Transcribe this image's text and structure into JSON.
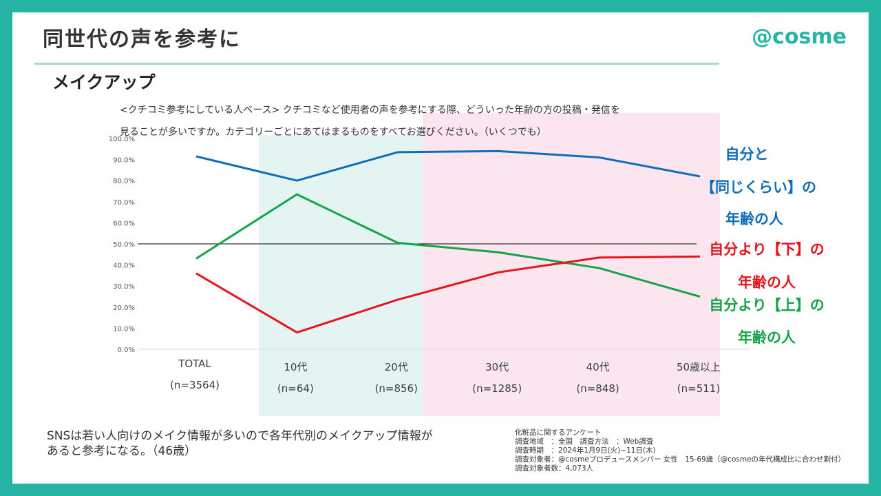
{
  "page": {
    "title": "同世代の声を参考に",
    "logo": "@cosme",
    "section": "メイクアップ",
    "question_line1": "<クチコミ参考にしている人ベース> クチコミなど使用者の声を参考にする際、どういった年齢の方の投稿・発信を",
    "question_line2": "見ることが多いですか。カテゴリーごとにあてはまるものをすべてお選びください。（いくつでも）",
    "comment_line1": "SNSは若い人向けのメイク情報が多いので各年代別のメイクアップ情報が",
    "comment_line2": "あると参考になる。（46歳）",
    "source_lines": [
      "化粧品に関するアンケート",
      "調査地域　：全国　調査方法　：Web調査",
      "調査時期　：2024年1月9日(火)~11日(木)",
      "調査対象者：@cosmeプロデュースメンバー 女性　15-69歳（@cosmeの年代構成比に合わせ割付）",
      "調査対象者数：4,073人"
    ]
  },
  "legend": {
    "same_1": "自分と",
    "same_2": "【同じくらい】の",
    "same_3": "年齢の人",
    "younger_1": "自分より【下】の",
    "younger_2": "年齢の人",
    "older_1": "自分より【上】の",
    "older_2": "年齢の人"
  },
  "colors": {
    "frame": "#26b5a5",
    "same": "#0e6eb8",
    "younger": "#e8141b",
    "older": "#15a34a",
    "teal_band": "#e3f4f2",
    "pink_band": "#fbe6ef"
  },
  "chart_data": {
    "type": "line",
    "categories": [
      "TOTAL",
      "10代",
      "20代",
      "30代",
      "40代",
      "50歳以上"
    ],
    "category_n": [
      "(n=3564)",
      "(n=64)",
      "(n=856)",
      "(n=1285)",
      "(n=848)",
      "(n=511)"
    ],
    "ylim": [
      0,
      100
    ],
    "yticks": [
      "0.0%",
      "10.0%",
      "20.0%",
      "30.0%",
      "40.0%",
      "50.0%",
      "60.0%",
      "70.0%",
      "80.0%",
      "90.0%",
      "100.0%"
    ],
    "reference_line": 50,
    "series": [
      {
        "key": "same",
        "values": [
          91.5,
          80.0,
          93.5,
          94.0,
          91.0,
          82.0
        ]
      },
      {
        "key": "older",
        "values": [
          43.0,
          73.5,
          50.5,
          46.0,
          38.5,
          25.0
        ]
      },
      {
        "key": "younger",
        "values": [
          36.0,
          8.0,
          23.5,
          36.5,
          43.5,
          44.0
        ]
      }
    ]
  }
}
